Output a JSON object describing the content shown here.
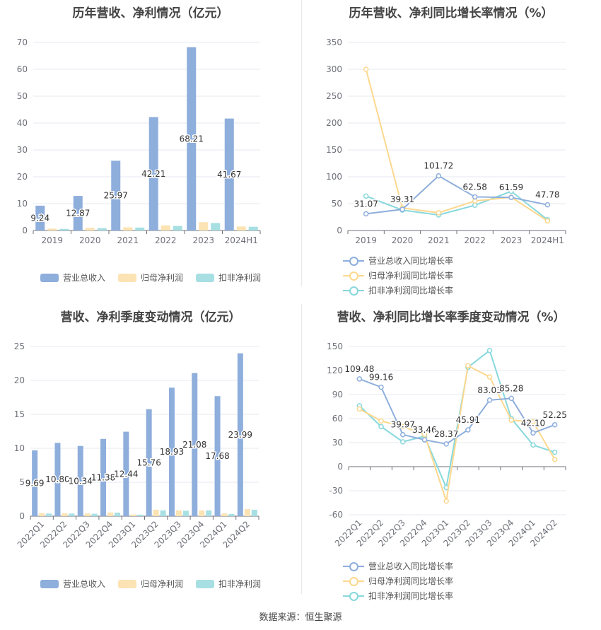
{
  "colors": {
    "revenue": "#8eaedc",
    "net_profit": "#fce3b4",
    "deducted_profit": "#a7dfe3",
    "rev_growth_line": "#8eaedc",
    "np_growth_line": "#fcd88f",
    "dp_growth_line": "#88d8dc"
  },
  "source": "数据来源：恒生聚源",
  "chart_data": [
    {
      "type": "bar",
      "title": "历年营收、净利情况（亿元）",
      "categories": [
        "2019",
        "2020",
        "2021",
        "2022",
        "2023",
        "2024H1"
      ],
      "ylim": [
        0,
        70
      ],
      "yticks": [
        0,
        10,
        20,
        30,
        40,
        50,
        60,
        70
      ],
      "series": [
        {
          "name": "营业总收入",
          "values": [
            9.24,
            12.87,
            25.97,
            42.21,
            68.21,
            41.67
          ],
          "labels": [
            "9.24",
            "12.87",
            "25.97",
            "42.21",
            "68.21",
            "41.67"
          ]
        },
        {
          "name": "归母净利润",
          "values": [
            0.7,
            1.0,
            1.2,
            1.9,
            3.1,
            1.5
          ]
        },
        {
          "name": "扣非净利润",
          "values": [
            0.6,
            0.9,
            1.1,
            1.7,
            2.8,
            1.4
          ]
        }
      ],
      "legend": "bottom",
      "grid": true
    },
    {
      "type": "line",
      "title": "历年营收、净利同比增长率情况（%）",
      "categories": [
        "2019",
        "2020",
        "2021",
        "2022",
        "2023",
        "2024H1"
      ],
      "ylim": [
        0,
        350
      ],
      "yticks": [
        0,
        50,
        100,
        150,
        200,
        250,
        300,
        350
      ],
      "series": [
        {
          "name": "营业总收入同比增长率",
          "values": [
            31.07,
            39.31,
            101.72,
            62.58,
            61.59,
            47.78
          ],
          "labels": [
            "31.07",
            "39.31",
            "101.72",
            "62.58",
            "61.59",
            "47.78"
          ]
        },
        {
          "name": "归母净利润同比增长率",
          "values": [
            300,
            42,
            33,
            55,
            62,
            18
          ]
        },
        {
          "name": "扣非净利润同比增长率",
          "values": [
            64,
            38,
            29,
            47,
            73,
            20
          ]
        }
      ],
      "legend": "bottom",
      "grid": true
    },
    {
      "type": "bar",
      "title": "营收、净利季度变动情况（亿元）",
      "categories": [
        "2022Q1",
        "2022Q2",
        "2022Q3",
        "2022Q4",
        "2023Q1",
        "2023Q2",
        "2023Q3",
        "2023Q4",
        "2024Q1",
        "2024Q2"
      ],
      "ylim": [
        0,
        25
      ],
      "yticks": [
        0,
        5,
        10,
        15,
        20,
        25
      ],
      "series": [
        {
          "name": "营业总收入",
          "values": [
            9.69,
            10.8,
            10.34,
            11.38,
            12.44,
            15.76,
            18.93,
            21.08,
            17.68,
            23.99
          ],
          "labels": [
            "9.69",
            "10.80",
            "10.34",
            "11.38",
            "12.44",
            "15.76",
            "18.93",
            "21.08",
            "17.68",
            "23.99"
          ]
        },
        {
          "name": "归母净利润",
          "values": [
            0.45,
            0.42,
            0.4,
            0.55,
            0.25,
            0.95,
            0.85,
            0.85,
            0.4,
            1.05
          ]
        },
        {
          "name": "扣非净利润",
          "values": [
            0.38,
            0.38,
            0.35,
            0.52,
            0.22,
            0.85,
            0.8,
            0.85,
            0.33,
            0.95
          ]
        }
      ],
      "legend": "bottom",
      "grid": true
    },
    {
      "type": "line",
      "title": "营收、净利同比增长率季度变动情况（%）",
      "categories": [
        "2022Q1",
        "2022Q2",
        "2022Q3",
        "2022Q4",
        "2023Q1",
        "2023Q2",
        "2023Q3",
        "2023Q4",
        "2024Q1",
        "2024Q2"
      ],
      "ylim": [
        -60,
        150
      ],
      "yticks": [
        -60,
        -30,
        0,
        30,
        60,
        90,
        120,
        150
      ],
      "series": [
        {
          "name": "营业总收入同比增长率",
          "values": [
            109.48,
            99.16,
            39.97,
            33.46,
            28.37,
            45.91,
            83.03,
            85.28,
            42.1,
            52.25
          ],
          "labels": [
            "109.48",
            "99.16",
            "39.97",
            "33.46",
            "28.37",
            "45.91",
            "83.03",
            "85.28",
            "42.10",
            "52.25"
          ]
        },
        {
          "name": "归母净利润同比增长率",
          "values": [
            72,
            57,
            50,
            40,
            -43,
            126,
            112,
            58,
            56,
            9
          ]
        },
        {
          "name": "扣非净利润同比增长率",
          "values": [
            76,
            50,
            31,
            38,
            -26,
            124,
            145,
            60,
            27,
            18
          ]
        }
      ],
      "legend": "bottom",
      "grid": true
    }
  ]
}
